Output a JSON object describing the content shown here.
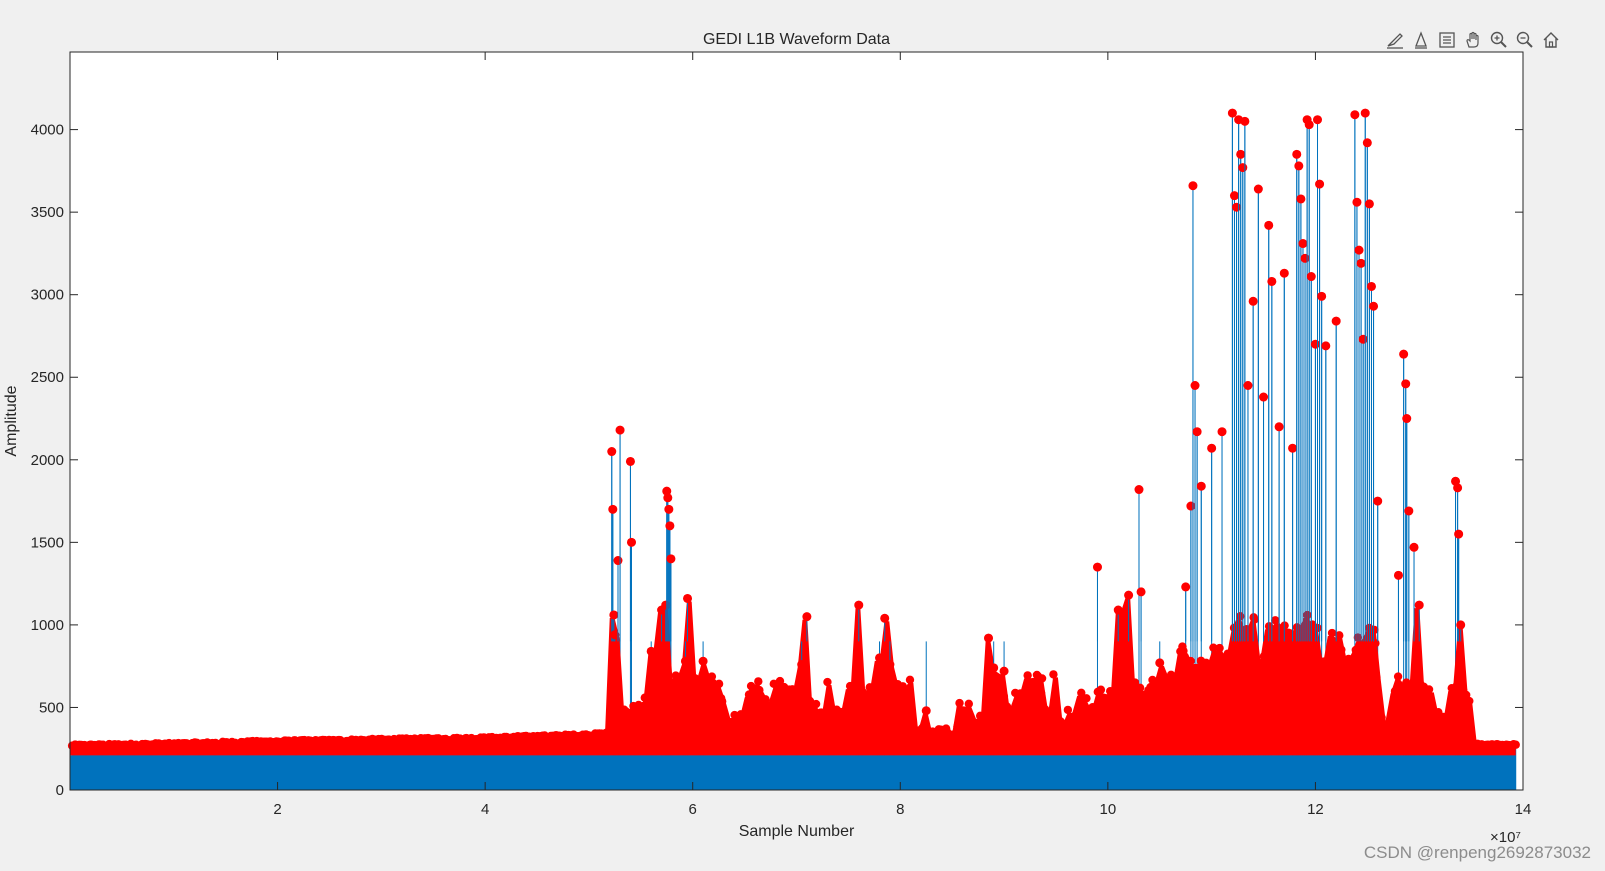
{
  "toolbar": {
    "icons": [
      "brush-edit-icon",
      "data-tips-icon",
      "legend-toggle-icon",
      "pan-hand-icon",
      "zoom-in-icon",
      "zoom-out-icon",
      "restore-view-icon"
    ]
  },
  "watermark": "CSDN @renpeng2692873032",
  "colors": {
    "axes_bg": "#ffffff",
    "figure_bg": "#f0f0f0",
    "stem_line": "#0072bd",
    "marker": "#ff0000"
  },
  "chart_data": {
    "type": "stem",
    "title": "GEDI L1B Waveform Data",
    "xlabel": "Sample Number",
    "ylabel": "Amplitude",
    "x_exponent": "×10⁷",
    "xlim": [
      0,
      14
    ],
    "ylim": [
      0,
      4470
    ],
    "xticks": [
      2,
      4,
      6,
      8,
      10,
      12,
      14
    ],
    "yticks": [
      0,
      500,
      1000,
      1500,
      2000,
      2500,
      3000,
      3500,
      4000
    ],
    "grid": false,
    "baseline_fill": 210,
    "series": [
      {
        "x_units": "1e7",
        "baseline_envelope": [
          [
            0,
            255
          ],
          [
            1,
            265
          ],
          [
            2,
            280
          ],
          [
            3,
            290
          ],
          [
            4,
            300
          ],
          [
            4.5,
            310
          ],
          [
            5,
            320
          ],
          [
            5.2,
            330
          ]
        ],
        "peaks": [
          [
            5.22,
            2050
          ],
          [
            5.23,
            1700
          ],
          [
            5.24,
            1060
          ],
          [
            5.25,
            940
          ],
          [
            5.28,
            1390
          ],
          [
            5.3,
            2180
          ],
          [
            5.4,
            1990
          ],
          [
            5.41,
            1500
          ],
          [
            5.6,
            840
          ],
          [
            5.7,
            1090
          ],
          [
            5.74,
            1120
          ],
          [
            5.75,
            1810
          ],
          [
            5.76,
            1770
          ],
          [
            5.77,
            1700
          ],
          [
            5.78,
            1600
          ],
          [
            5.79,
            1400
          ],
          [
            5.95,
            1160
          ],
          [
            5.93,
            780
          ],
          [
            6.1,
            780
          ],
          [
            7.1,
            1050
          ],
          [
            7.05,
            760
          ],
          [
            7.6,
            1120
          ],
          [
            7.8,
            800
          ],
          [
            7.85,
            1040
          ],
          [
            7.9,
            760
          ],
          [
            8.25,
            480
          ],
          [
            8.85,
            920
          ],
          [
            8.9,
            740
          ],
          [
            9.0,
            720
          ],
          [
            9.9,
            1350
          ],
          [
            10.1,
            1090
          ],
          [
            10.2,
            1180
          ],
          [
            10.3,
            1820
          ],
          [
            10.32,
            1200
          ],
          [
            10.5,
            770
          ],
          [
            10.75,
            1230
          ],
          [
            10.8,
            1720
          ],
          [
            10.82,
            3660
          ],
          [
            10.84,
            2450
          ],
          [
            10.86,
            2170
          ],
          [
            10.9,
            1840
          ],
          [
            11.0,
            2070
          ],
          [
            11.1,
            2170
          ],
          [
            11.2,
            4100
          ],
          [
            11.22,
            3600
          ],
          [
            11.24,
            3530
          ],
          [
            11.26,
            4060
          ],
          [
            11.28,
            3850
          ],
          [
            11.3,
            3770
          ],
          [
            11.32,
            4050
          ],
          [
            11.35,
            2450
          ],
          [
            11.4,
            2960
          ],
          [
            11.45,
            3640
          ],
          [
            11.5,
            2380
          ],
          [
            11.55,
            3420
          ],
          [
            11.58,
            3080
          ],
          [
            11.65,
            2200
          ],
          [
            11.7,
            3130
          ],
          [
            11.78,
            2070
          ],
          [
            11.82,
            3850
          ],
          [
            11.84,
            3780
          ],
          [
            11.86,
            3580
          ],
          [
            11.88,
            3310
          ],
          [
            11.9,
            3220
          ],
          [
            11.92,
            4060
          ],
          [
            11.94,
            4030
          ],
          [
            11.96,
            3110
          ],
          [
            12.0,
            2700
          ],
          [
            12.02,
            4060
          ],
          [
            12.04,
            3670
          ],
          [
            12.06,
            2990
          ],
          [
            12.1,
            2690
          ],
          [
            12.2,
            2840
          ],
          [
            12.38,
            4090
          ],
          [
            12.4,
            3560
          ],
          [
            12.42,
            3270
          ],
          [
            12.44,
            3190
          ],
          [
            12.46,
            2730
          ],
          [
            12.48,
            4100
          ],
          [
            12.5,
            3920
          ],
          [
            12.52,
            3550
          ],
          [
            12.54,
            3050
          ],
          [
            12.56,
            2930
          ],
          [
            12.6,
            1750
          ],
          [
            12.8,
            1300
          ],
          [
            12.85,
            2640
          ],
          [
            12.87,
            2460
          ],
          [
            12.88,
            2250
          ],
          [
            12.9,
            1690
          ],
          [
            12.95,
            1470
          ],
          [
            13.0,
            1120
          ],
          [
            13.35,
            1870
          ],
          [
            13.37,
            1830
          ],
          [
            13.38,
            1550
          ],
          [
            13.4,
            1000
          ]
        ]
      }
    ]
  }
}
